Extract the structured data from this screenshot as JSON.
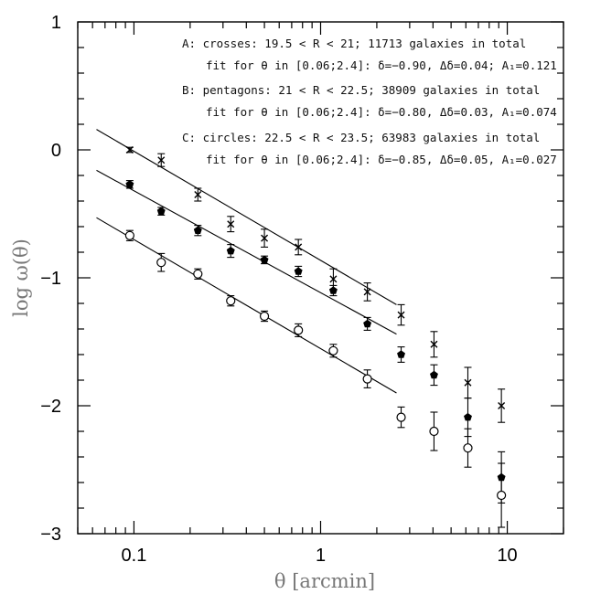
{
  "chart_data": {
    "type": "scatter",
    "title": "",
    "xlabel": "θ [arcmin]",
    "ylabel": "log ω(θ)",
    "xscale": "log",
    "xlim": [
      0.05,
      20
    ],
    "ylim": [
      -3,
      1
    ],
    "xticklabels": [
      "0.1",
      "1",
      "10"
    ],
    "yticklabels": [
      "1",
      "0",
      "−1",
      "−2",
      "−3"
    ],
    "grid": false,
    "legend": "none",
    "annotations": [
      "A: crosses: 19.5 < R < 21; 11713 galaxies in total",
      "fit for θ in [0.06;2.4]: δ=−0.90, Δδ=0.04; A₁=0.121",
      "B: pentagons: 21 < R < 22.5; 38909 galaxies in total",
      "fit for θ in [0.06;2.4]: δ=−0.80, Δδ=0.03, A₁=0.074",
      "C: circles: 22.5 < R < 23.5; 63983 galaxies in total",
      "fit for θ in [0.06;2.4]: δ=−0.85, Δδ=0.05, A₁=0.027"
    ],
    "series": [
      {
        "marker": "cross",
        "x": [
          0.095,
          0.14,
          0.22,
          0.33,
          0.5,
          0.76,
          1.17,
          1.78,
          2.7,
          4.05,
          6.15,
          9.3
        ],
        "y": [
          0.0,
          -0.08,
          -0.35,
          -0.58,
          -0.69,
          -0.76,
          -1.01,
          -1.11,
          -1.29,
          -1.52,
          -1.82,
          -2.0
        ],
        "yerr": [
          0.02,
          0.05,
          0.05,
          0.06,
          0.07,
          0.06,
          0.08,
          0.07,
          0.08,
          0.1,
          0.12,
          0.13
        ],
        "fit": {
          "x": [
            0.063,
            2.55
          ],
          "y": [
            0.16,
            -1.21
          ]
        }
      },
      {
        "marker": "pentagon",
        "x": [
          0.095,
          0.14,
          0.22,
          0.33,
          0.5,
          0.76,
          1.17,
          1.78,
          2.7,
          4.05,
          6.15,
          9.3
        ],
        "y": [
          -0.27,
          -0.48,
          -0.63,
          -0.79,
          -0.86,
          -0.95,
          -1.1,
          -1.36,
          -1.6,
          -1.76,
          -2.09,
          -2.56
        ],
        "yerr": [
          0.03,
          0.03,
          0.04,
          0.05,
          0.03,
          0.04,
          0.04,
          0.05,
          0.06,
          0.08,
          0.15,
          0.2
        ],
        "fit": {
          "x": [
            0.063,
            2.55
          ],
          "y": [
            -0.16,
            -1.44
          ]
        }
      },
      {
        "marker": "circle",
        "x": [
          0.095,
          0.14,
          0.22,
          0.33,
          0.5,
          0.76,
          1.17,
          1.78,
          2.7,
          4.05,
          6.15,
          9.3
        ],
        "y": [
          -0.67,
          -0.88,
          -0.97,
          -1.18,
          -1.3,
          -1.41,
          -1.57,
          -1.79,
          -2.09,
          -2.2,
          -2.33,
          -2.7
        ],
        "yerr": [
          0.04,
          0.07,
          0.04,
          0.04,
          0.04,
          0.05,
          0.05,
          0.07,
          0.08,
          0.15,
          0.15,
          0.25
        ],
        "fit": {
          "x": [
            0.063,
            2.55
          ],
          "y": [
            -0.53,
            -1.9
          ]
        }
      }
    ]
  }
}
